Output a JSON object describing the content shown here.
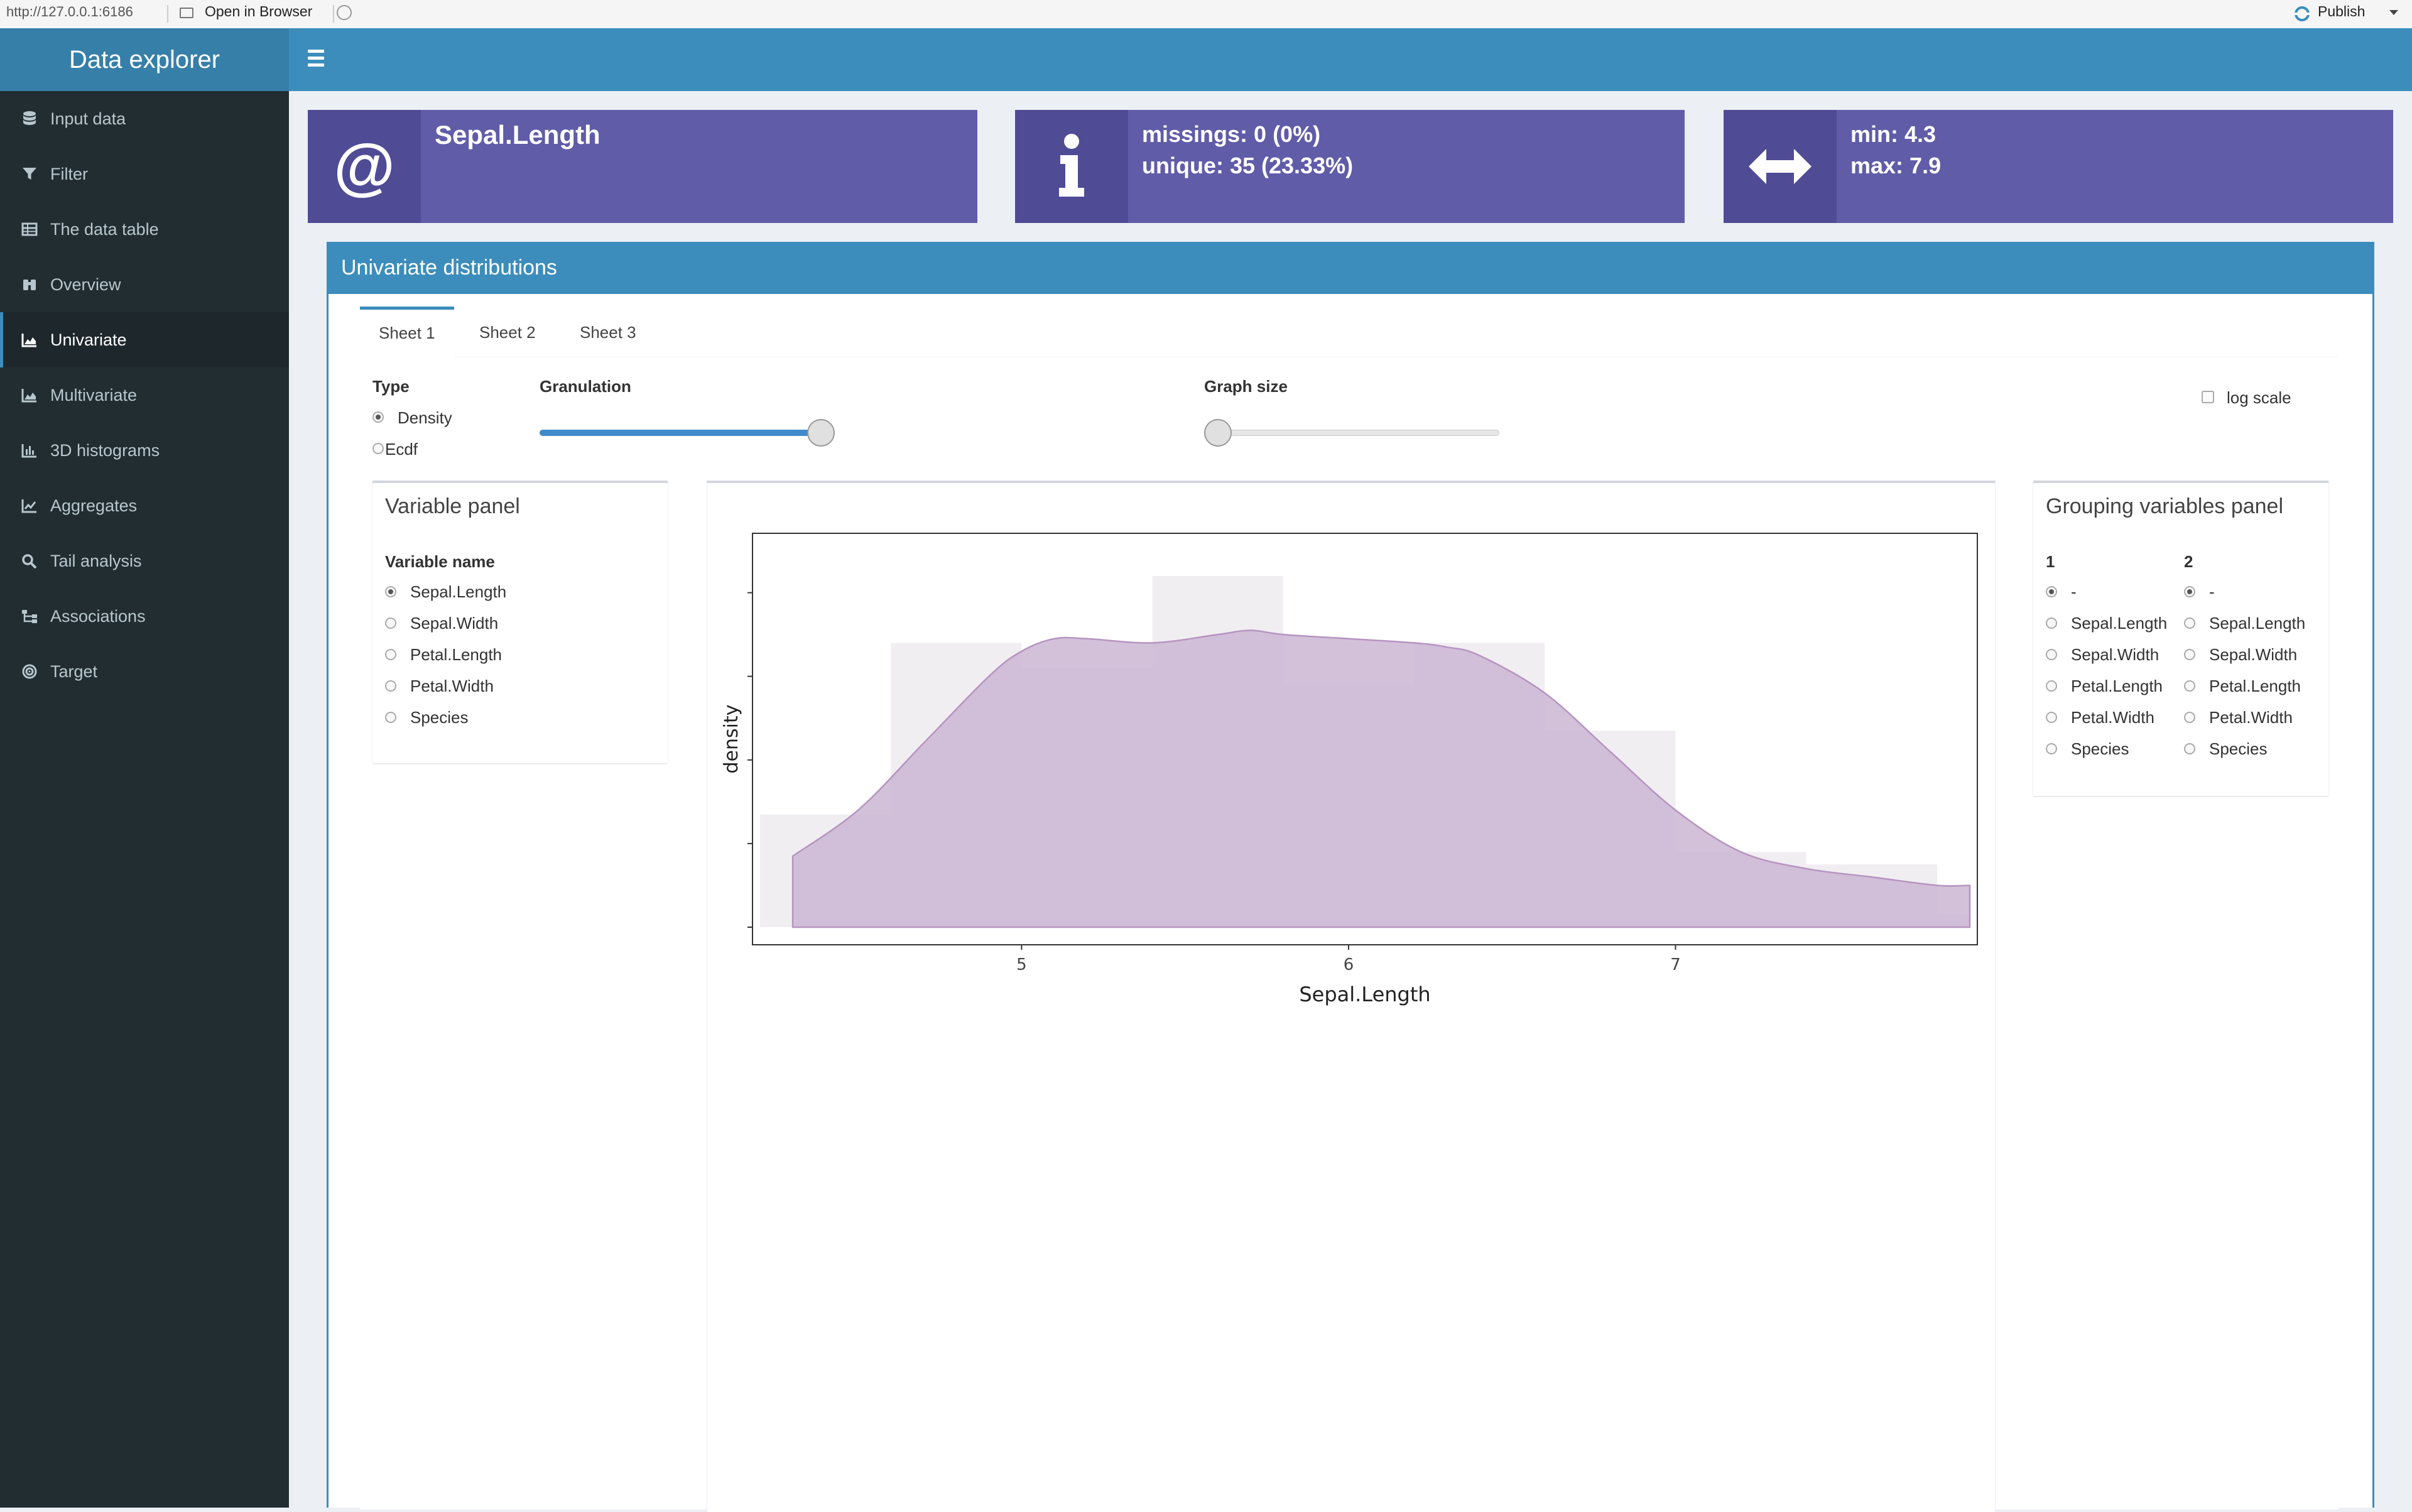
{
  "browser": {
    "url": "http://127.0.0.1:6186",
    "open_label": "Open in Browser",
    "publish_label": "Publish"
  },
  "header": {
    "title": "Data explorer"
  },
  "sidebar": {
    "items": [
      {
        "label": "Input data",
        "icon": "database-icon"
      },
      {
        "label": "Filter",
        "icon": "filter-icon"
      },
      {
        "label": "The data table",
        "icon": "table-icon"
      },
      {
        "label": "Overview",
        "icon": "binoculars-icon"
      },
      {
        "label": "Univariate",
        "icon": "area-chart-icon",
        "active": true
      },
      {
        "label": "Multivariate",
        "icon": "area-chart-icon"
      },
      {
        "label": "3D histograms",
        "icon": "bar-chart-icon"
      },
      {
        "label": "Aggregates",
        "icon": "line-chart-icon"
      },
      {
        "label": "Tail analysis",
        "icon": "search-icon"
      },
      {
        "label": "Associations",
        "icon": "sitemap-icon"
      },
      {
        "label": "Target",
        "icon": "bullseye-icon"
      }
    ]
  },
  "infoboxes": {
    "variable": {
      "icon": "at-icon",
      "title": "Sepal.Length"
    },
    "missing": {
      "icon": "info-icon",
      "line1": "missings: 0 (0%)",
      "line2": "unique: 35 (23.33%)"
    },
    "range": {
      "icon": "arrows-h-icon",
      "line1": "min: 4.3",
      "line2": "max: 7.9"
    }
  },
  "main": {
    "title": "Univariate distributions",
    "tabs": [
      "Sheet 1",
      "Sheet 2",
      "Sheet 3"
    ],
    "active_tab": "Sheet 1",
    "type": {
      "label": "Type",
      "options": [
        "Density",
        "Ecdf"
      ],
      "selected": "Density"
    },
    "granulation": {
      "label": "Granulation",
      "level": 1.0
    },
    "graph_size": {
      "label": "Graph size",
      "level": 0.0
    },
    "log_scale": {
      "label": "log scale",
      "checked": false
    },
    "variable_panel": {
      "title": "Variable panel",
      "header": "Variable name",
      "options": [
        "Sepal.Length",
        "Sepal.Width",
        "Petal.Length",
        "Petal.Width",
        "Species"
      ],
      "selected": "Sepal.Length"
    },
    "grouping_panel": {
      "title": "Grouping variables panel",
      "col1_header": "1",
      "col2_header": "2",
      "options": [
        "-",
        "Sepal.Length",
        "Sepal.Width",
        "Petal.Length",
        "Petal.Width",
        "Species"
      ],
      "selected1": "-",
      "selected2": "-"
    }
  },
  "chart_data": {
    "type": "area",
    "xlabel": "Sepal.Length",
    "ylabel": "density",
    "xlim": [
      4.2,
      7.9
    ],
    "ylim": [
      0,
      0.45
    ],
    "xticks": [
      5,
      6,
      7
    ],
    "fill_color": "#c9b3d2",
    "stroke_color": "#b694c1",
    "histogram": {
      "bins": [
        {
          "x0": 4.2,
          "x1": 4.6,
          "height": 0.135
        },
        {
          "x0": 4.6,
          "x1": 5.0,
          "height": 0.34
        },
        {
          "x0": 5.0,
          "x1": 5.4,
          "height": 0.31
        },
        {
          "x0": 5.4,
          "x1": 5.8,
          "height": 0.42
        },
        {
          "x0": 5.8,
          "x1": 6.2,
          "height": 0.29
        },
        {
          "x0": 6.2,
          "x1": 6.6,
          "height": 0.34
        },
        {
          "x0": 6.6,
          "x1": 7.0,
          "height": 0.235
        },
        {
          "x0": 7.0,
          "x1": 7.4,
          "height": 0.09
        },
        {
          "x0": 7.4,
          "x1": 7.8,
          "height": 0.075
        },
        {
          "x0": 7.8,
          "x1": 7.9,
          "height": 0.015
        }
      ]
    },
    "density": {
      "x": [
        4.3,
        4.5,
        4.7,
        4.9,
        5.0,
        5.1,
        5.2,
        5.4,
        5.6,
        5.7,
        5.8,
        6.0,
        6.2,
        6.3,
        6.4,
        6.6,
        6.8,
        7.0,
        7.2,
        7.4,
        7.6,
        7.8,
        7.9
      ],
      "y": [
        0.085,
        0.14,
        0.22,
        0.3,
        0.33,
        0.345,
        0.345,
        0.34,
        0.35,
        0.355,
        0.35,
        0.345,
        0.34,
        0.335,
        0.325,
        0.28,
        0.21,
        0.14,
        0.09,
        0.07,
        0.06,
        0.05,
        0.05
      ]
    }
  }
}
